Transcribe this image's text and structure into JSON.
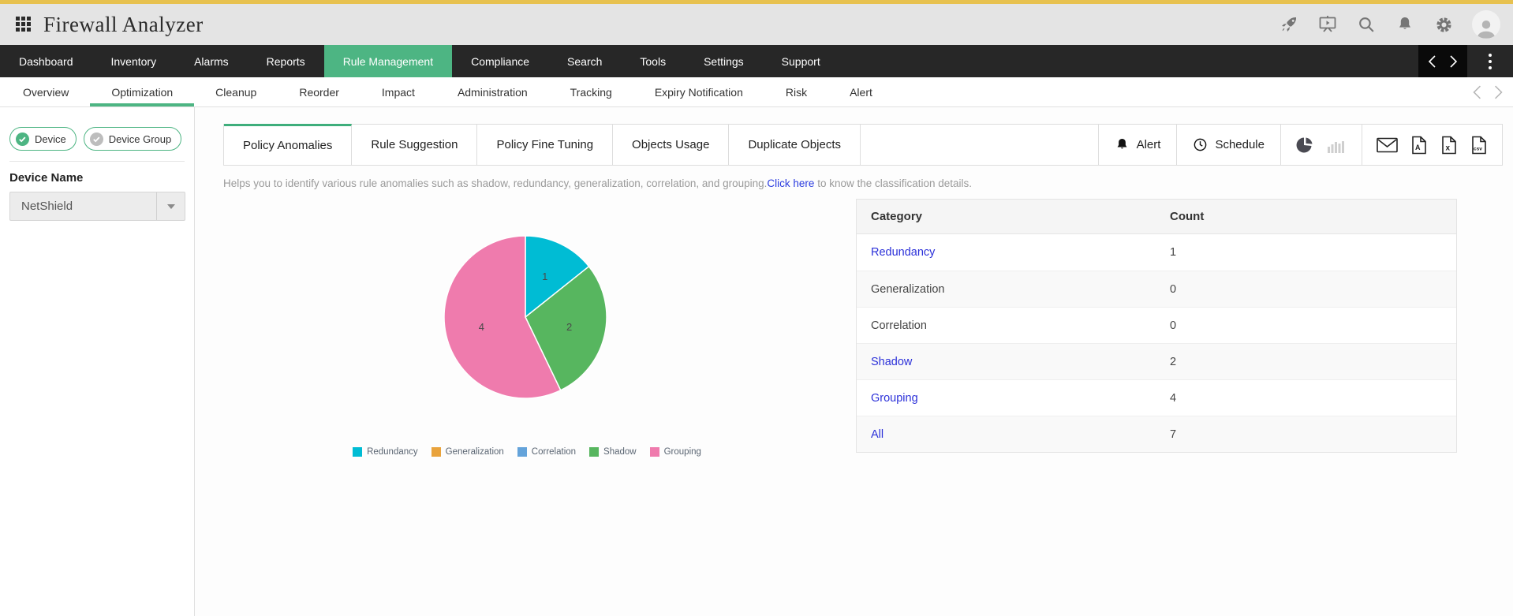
{
  "header": {
    "title": "Firewall Analyzer",
    "icons": [
      "apps-grid",
      "rocket",
      "presentation",
      "search",
      "notifications",
      "settings",
      "user-avatar"
    ]
  },
  "nav": {
    "items": [
      "Dashboard",
      "Inventory",
      "Alarms",
      "Reports",
      "Rule Management",
      "Compliance",
      "Search",
      "Tools",
      "Settings",
      "Support"
    ],
    "active": "Rule Management"
  },
  "subnav": {
    "items": [
      "Overview",
      "Optimization",
      "Cleanup",
      "Reorder",
      "Impact",
      "Administration",
      "Tracking",
      "Expiry Notification",
      "Risk",
      "Alert"
    ],
    "active": "Optimization"
  },
  "sidebar": {
    "device_button": "Device",
    "device_group_button": "Device Group",
    "selected_mode": "Device",
    "field_label": "Device Name",
    "device_value": "NetShield"
  },
  "toolbar": {
    "tabs": [
      "Policy Anomalies",
      "Rule Suggestion",
      "Policy Fine Tuning",
      "Objects Usage",
      "Duplicate Objects"
    ],
    "active_tab": "Policy Anomalies",
    "alert_label": "Alert",
    "schedule_label": "Schedule",
    "view_icons": [
      "pie-chart-view",
      "bar-chart-view"
    ],
    "active_view": "pie-chart-view",
    "export_icons": [
      "email",
      "pdf",
      "excel",
      "csv"
    ]
  },
  "description": {
    "text": "Helps you to identify various rule anomalies such as shadow, redundancy, generalization, correlation, and grouping.",
    "link_text": "Click here",
    "suffix": " to know the classification details."
  },
  "chart_data": {
    "type": "pie",
    "title": "",
    "categories": [
      "Redundancy",
      "Generalization",
      "Correlation",
      "Shadow",
      "Grouping"
    ],
    "values": [
      1,
      0,
      0,
      2,
      4
    ],
    "total": 7,
    "colors": [
      "#00bcd4",
      "#e9a33c",
      "#64a3da",
      "#57b65f",
      "#ef7bad"
    ],
    "slice_labels": [
      "1",
      "2",
      "4"
    ],
    "legend_position": "bottom",
    "start_angle_deg": 0,
    "direction": "clockwise"
  },
  "table": {
    "headers": [
      "Category",
      "Count"
    ],
    "rows": [
      {
        "category": "Redundancy",
        "count": "1",
        "link": true
      },
      {
        "category": "Generalization",
        "count": "0",
        "link": false
      },
      {
        "category": "Correlation",
        "count": "0",
        "link": false
      },
      {
        "category": "Shadow",
        "count": "2",
        "link": true
      },
      {
        "category": "Grouping",
        "count": "4",
        "link": true
      },
      {
        "category": "All",
        "count": "7",
        "link": true
      }
    ]
  },
  "colors": {
    "accent_green": "#4db583",
    "topbar_yellow": "#e7c14f",
    "link_blue": "#2b30d9",
    "nav_dark": "#272727"
  }
}
